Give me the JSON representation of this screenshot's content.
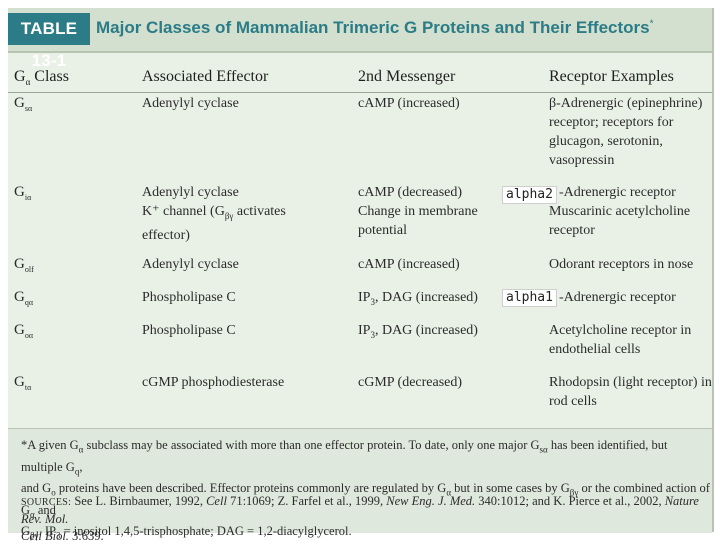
{
  "title": {
    "tag": "TABLE 13-1",
    "text": "Major Classes of Mammalian Trimeric G Proteins and Their Effectors",
    "marker": "*"
  },
  "columns": [
    "Class",
    "Associated Effector",
    "2nd Messenger",
    "Receptor Examples"
  ],
  "column_symbol": {
    "base": "G",
    "sub": "α"
  },
  "rows": [
    {
      "g_sub": "sα",
      "effector": [
        "Adenylyl cyclase"
      ],
      "messenger": [
        "cAMP (increased)"
      ],
      "receptor": [
        "β-Adrenergic (epinephrine)",
        "receptor; receptors for",
        "glucagon, serotonin,",
        "vasopressin"
      ]
    },
    {
      "g_sub": "iα",
      "effector": [
        "Adenylyl cyclase",
        "K⁺ channel (G",
        "effector)"
      ],
      "effector_k_sub": "βγ",
      "effector_k_tail": " activates",
      "messenger": [
        "cAMP (decreased)",
        "Change in membrane",
        "potential"
      ],
      "receptor": [
        "-Adrenergic receptor",
        "Muscarinic acetylcholine",
        "receptor"
      ]
    },
    {
      "g_sub": "olf",
      "effector": [
        "Adenylyl cyclase"
      ],
      "messenger": [
        "cAMP (increased)"
      ],
      "receptor": [
        "Odorant receptors in nose"
      ]
    },
    {
      "g_sub": "qα",
      "effector": [
        "Phospholipase C"
      ],
      "messenger": [
        "IP",
        ", DAG (increased)"
      ],
      "messenger_sub": "3",
      "receptor": [
        "-Adrenergic receptor"
      ]
    },
    {
      "g_sub": "oα",
      "effector": [
        "Phospholipase C"
      ],
      "messenger": [
        "IP",
        ", DAG (increased)"
      ],
      "messenger_sub": "3",
      "receptor": [
        "Acetylcholine receptor in",
        "endothelial cells"
      ]
    },
    {
      "g_sub": "tα",
      "effector": [
        "cGMP phosphodiesterase"
      ],
      "messenger": [
        "cGMP (decreased)"
      ],
      "receptor": [
        "Rhodopsin (light receptor) in",
        "rod cells"
      ]
    }
  ],
  "overlays": [
    "alpha2",
    "alpha1"
  ],
  "footnote": {
    "l1_a": "*A given G",
    "l1_b": " subclass may be associated with more than one effector protein. To date, only one major G",
    "l1_c": " has been identified, but multiple G",
    "l1_d": ",",
    "l2_a": "and G",
    "l2_b": " proteins have been described. Effector proteins commonly are regulated by G",
    "l2_c": " but in some cases by G",
    "l2_d": " or the combined action of G",
    "l2_e": " and",
    "l3_a": "G",
    "l3_b": ". IP",
    "l3_c": " = inositol 1,4,5-trisphosphate; DAG = 1,2-diacylglycerol.",
    "subs": {
      "alpha": "α",
      "s_alpha": "sα",
      "q": "q",
      "o": "o",
      "beta_gamma": "βγ",
      "three": "3"
    }
  },
  "sources": {
    "label": "SOURCES:",
    "l1_a": " See L. Birnbaumer, 1992, ",
    "l1_b": "Cell",
    "l1_c": " 71:1069; Z. Farfel et al., 1999, ",
    "l1_d": "New Eng. J. Med.",
    "l1_e": " 340:1012; and K. Pierce et al., 2002, ",
    "l1_f": "Nature Rev. Mol.",
    "l2_a": "Cell Biol.",
    "l2_b": " 3:639."
  }
}
